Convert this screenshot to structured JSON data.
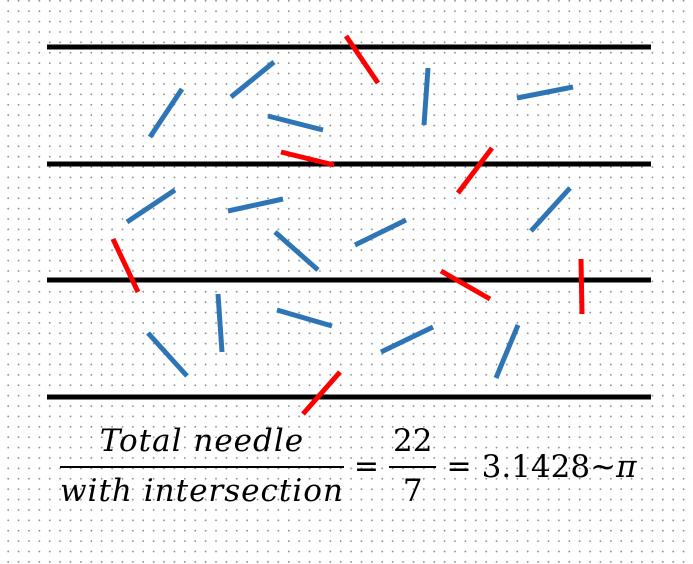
{
  "colors": {
    "ruled_line": "#000000",
    "needle_no_intersection": "#2e75b6",
    "needle_with_intersection": "#ff0000",
    "dot_grid": "#8e8e8e"
  },
  "lines": {
    "count": 4
  },
  "needles": {
    "total": 22,
    "with_intersection": 7
  },
  "formula": {
    "left_numerator": "Total needle",
    "left_denominator": "with intersection",
    "equals_1": "=",
    "right_numerator": "22",
    "right_denominator": "7",
    "equals_2": "=",
    "result": "3.1428",
    "approx": "~",
    "pi": "π"
  }
}
